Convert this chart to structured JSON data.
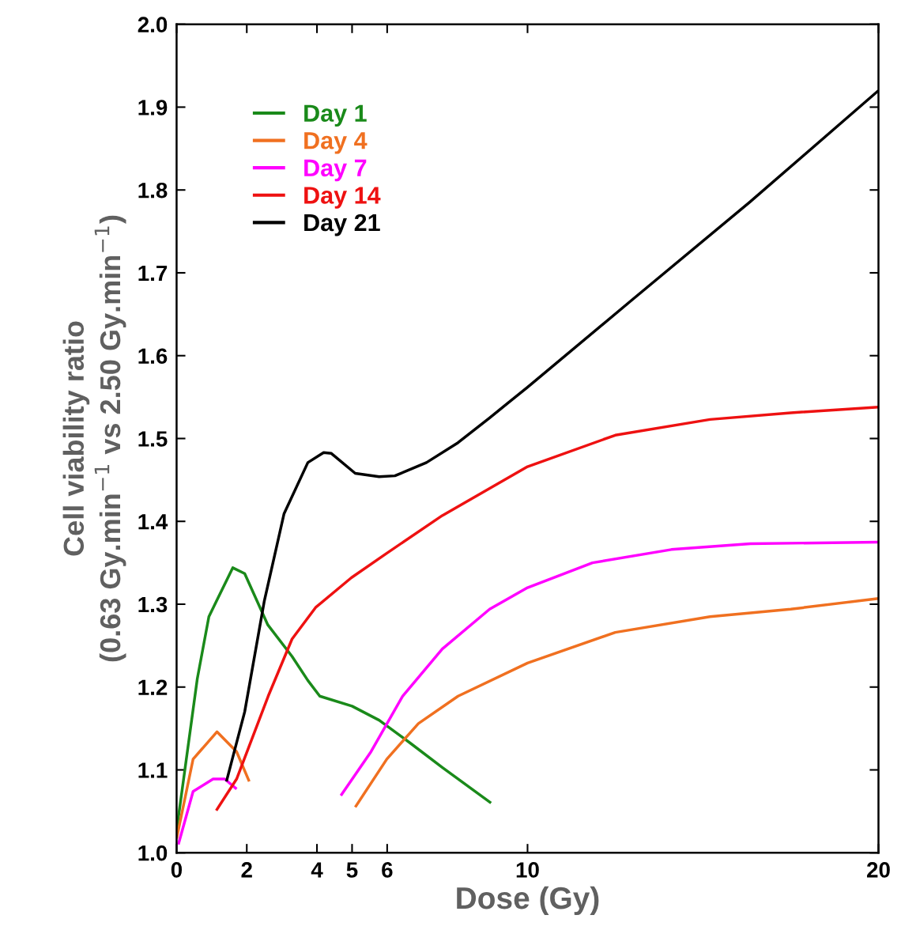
{
  "chart_data": {
    "type": "line",
    "xlabel": "Dose (Gy)",
    "ylabel": "Cell viability ratio\n(0.63 Gy.min$^{−1}$ vs 2.50 Gy.min$^{−1}$)",
    "xlim": [
      0,
      20
    ],
    "xticks": [
      0,
      2,
      4,
      5,
      6,
      10,
      20
    ],
    "ylim": [
      1.0,
      2.0
    ],
    "yticks": [
      {
        "value": 1.0,
        "label": "1.0"
      },
      1.1,
      1.2,
      1.3,
      1.4,
      1.5,
      1.6,
      1.7,
      1.8,
      1.9,
      {
        "value": 2.0,
        "label": "2.0"
      }
    ],
    "grid": false,
    "legend": "top left",
    "marker": "none",
    "line_style": "solid",
    "series": [
      {
        "name": "Day 1",
        "color": "#1a8a1a",
        "x": [
          0,
          0.59,
          0.92,
          1.6,
          1.94,
          2.6,
          3.29,
          3.74,
          4.08,
          5,
          5.77,
          6.67,
          7.57,
          8.96
        ],
        "values": [
          1.027,
          1.21,
          1.285,
          1.344,
          1.337,
          1.275,
          1.237,
          1.208,
          1.189,
          1.177,
          1.16,
          1.132,
          1.103,
          1.06
        ]
      },
      {
        "name": "Day 4",
        "color": "#f07020",
        "x": [
          0,
          0.47,
          1.15,
          1.71,
          2.07,
          3.5,
          5.09,
          5.99,
          6.89,
          8.02,
          10,
          12.5,
          15.2,
          17.5,
          20
        ],
        "values": [
          1.017,
          1.113,
          1.146,
          1.122,
          1.086,
          null,
          1.055,
          1.113,
          1.156,
          1.189,
          1.229,
          1.266,
          1.285,
          1.294,
          1.307
        ]
      },
      {
        "name": "Day 7",
        "color": "#ff00ff",
        "x": [
          0.05,
          0.47,
          1.04,
          1.37,
          1.71,
          3.0,
          4.68,
          5.54,
          6.44,
          7.57,
          8.92,
          10,
          11.85,
          14.1,
          16.35,
          20
        ],
        "values": [
          1.01,
          1.074,
          1.089,
          1.089,
          1.077,
          null,
          1.069,
          1.122,
          1.189,
          1.246,
          1.294,
          1.32,
          1.35,
          1.366,
          1.373,
          1.375
        ]
      },
      {
        "name": "Day 14",
        "color": "#ee1111",
        "x": [
          1.13,
          1.71,
          2.61,
          3.29,
          3.96,
          4.98,
          5.97,
          7.57,
          10,
          12.5,
          15.2,
          17.5,
          20
        ],
        "values": [
          1.051,
          1.089,
          1.189,
          1.258,
          1.296,
          1.332,
          1.361,
          1.407,
          1.466,
          1.504,
          1.523,
          1.531,
          1.538
        ]
      },
      {
        "name": "Day 21",
        "color": "#000000",
        "x": [
          1.42,
          1.94,
          2.5,
          3.06,
          3.74,
          4.19,
          4.41,
          5.09,
          5.77,
          6.22,
          7.12,
          8.02,
          8.92,
          10,
          12.97,
          16.35,
          20
        ],
        "values": [
          1.086,
          1.17,
          1.304,
          1.409,
          1.471,
          1.483,
          1.482,
          1.458,
          1.454,
          1.455,
          1.471,
          1.495,
          1.525,
          1.562,
          1.667,
          1.786,
          1.92
        ]
      }
    ]
  }
}
